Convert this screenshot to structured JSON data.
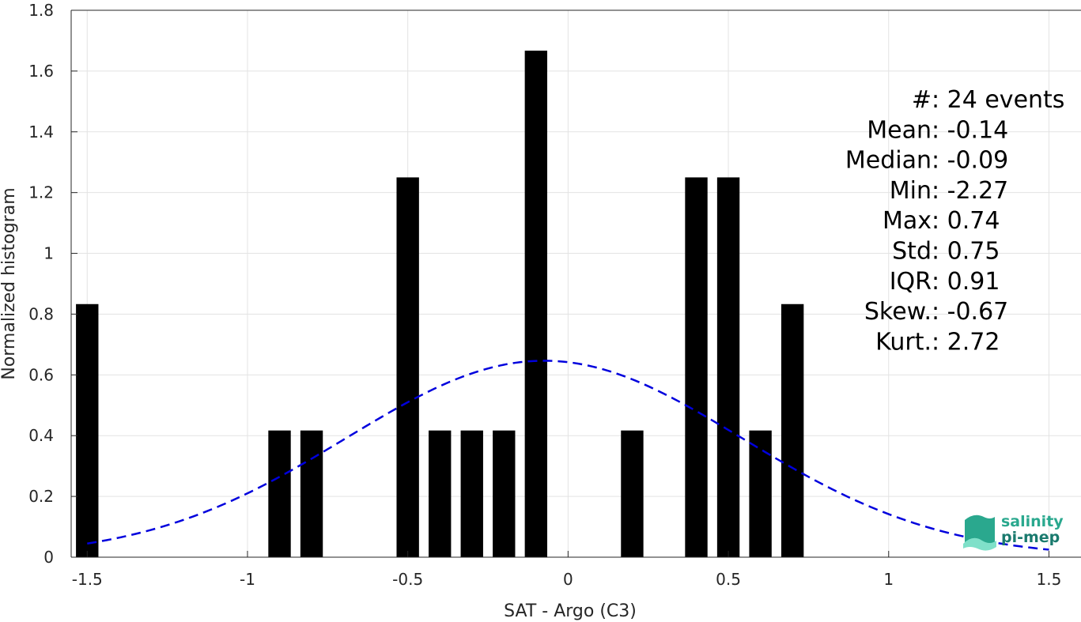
{
  "chart_data": {
    "type": "bar",
    "xlabel": "SAT - Argo (C3)",
    "ylabel": "Normalized histogram",
    "xlim": [
      -1.55,
      1.6
    ],
    "ylim": [
      0,
      1.8
    ],
    "grid": true,
    "xticks": [
      -1.5,
      -1,
      -0.5,
      0,
      0.5,
      1,
      1.5
    ],
    "xtick_labels": [
      "-1.5",
      "-1",
      "-0.5",
      "0",
      "0.5",
      "1",
      "1.5"
    ],
    "yticks": [
      0,
      0.2,
      0.4,
      0.6,
      0.8,
      1,
      1.2,
      1.4,
      1.6,
      1.8
    ],
    "ytick_labels": [
      "0",
      "0.2",
      "0.4",
      "0.6",
      "0.8",
      "1",
      "1.2",
      "1.4",
      "1.6",
      "1.8"
    ],
    "bar_width": 0.07,
    "bars": [
      {
        "x": -1.5,
        "value": 0.833
      },
      {
        "x": -0.9,
        "value": 0.417
      },
      {
        "x": -0.8,
        "value": 0.417
      },
      {
        "x": -0.5,
        "value": 1.25
      },
      {
        "x": -0.4,
        "value": 0.417
      },
      {
        "x": -0.3,
        "value": 0.417
      },
      {
        "x": -0.2,
        "value": 0.417
      },
      {
        "x": -0.1,
        "value": 1.667
      },
      {
        "x": 0.2,
        "value": 0.417
      },
      {
        "x": 0.4,
        "value": 1.25
      },
      {
        "x": 0.5,
        "value": 1.25
      },
      {
        "x": 0.6,
        "value": 0.417
      },
      {
        "x": 0.7,
        "value": 0.833
      }
    ],
    "fit": {
      "type": "normal",
      "mean": -0.075,
      "std": 0.617,
      "x_range": [
        -1.5,
        1.5
      ],
      "color": "#0000dd",
      "style": "dashed"
    },
    "bar_color": "#000000",
    "stats": [
      {
        "label": "#  ",
        "value": ": 24 events"
      },
      {
        "label": "Mean ",
        "value": ": -0.14"
      },
      {
        "label": "Median ",
        "value": ": -0.09"
      },
      {
        "label": "Min ",
        "value": ": -2.27"
      },
      {
        "label": "Max ",
        "value": ": 0.74"
      },
      {
        "label": "Std ",
        "value": ": 0.75"
      },
      {
        "label": "IQR ",
        "value": ": 0.91"
      },
      {
        "label": "Skew. ",
        "value": ": -0.67"
      },
      {
        "label": "Kurt. ",
        "value": ": 2.72"
      }
    ]
  },
  "logo": {
    "line1": "salinity",
    "line2": "pi-mep",
    "color_dark": "#1a7a6e",
    "color_light": "#3fc1a5"
  }
}
